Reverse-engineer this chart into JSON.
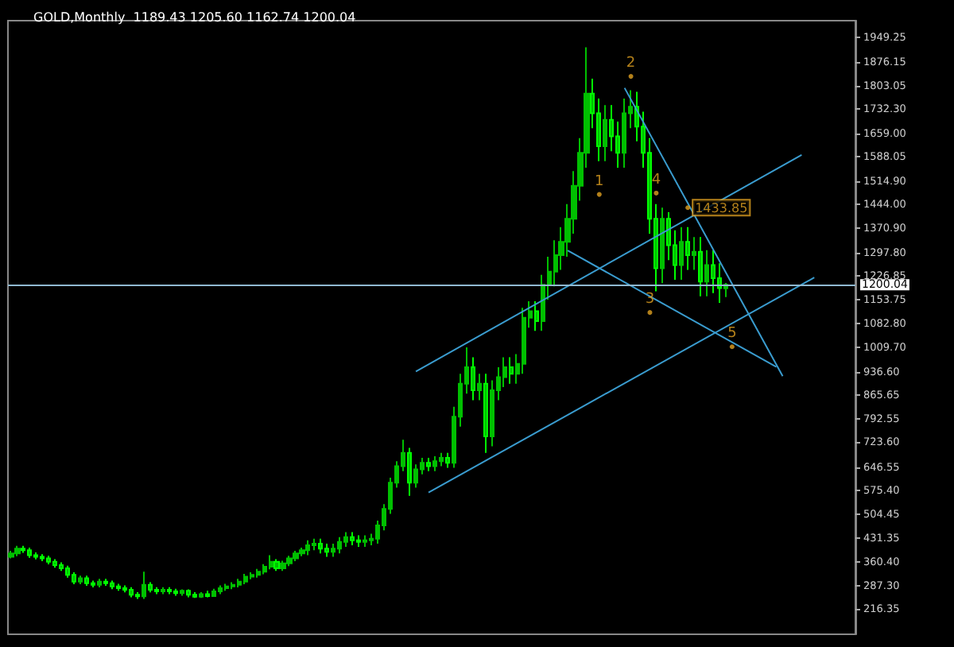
{
  "chart_data": {
    "type": "candlestick",
    "title": "GOLD,Monthly  1189.43 1205.60 1162.74 1200.04",
    "categories": [
      null,
      null,
      null,
      null,
      null,
      null,
      null,
      null,
      null,
      null,
      null,
      null,
      null,
      null,
      null,
      null,
      null,
      null,
      null,
      null,
      null,
      null,
      null,
      null,
      null,
      null,
      null,
      null,
      null,
      null,
      null,
      null,
      null,
      null,
      null,
      null,
      null,
      null,
      null,
      null,
      null,
      null,
      null,
      null,
      null,
      null,
      null,
      null,
      null,
      null,
      null,
      null,
      null,
      null,
      null,
      null,
      null,
      null,
      null,
      null,
      null,
      null,
      null,
      null,
      null,
      null,
      null,
      null,
      null,
      null,
      null,
      null,
      null,
      null,
      null,
      null,
      null,
      null,
      null,
      null,
      null,
      null,
      null,
      null,
      null,
      null,
      null,
      null,
      null,
      null,
      null,
      null,
      null,
      null,
      null,
      null,
      null,
      null,
      null,
      null,
      null,
      null,
      null,
      null,
      null,
      null,
      null,
      null,
      null,
      null,
      null,
      null,
      null,
      null,
      null,
      null,
      null,
      null,
      null,
      null,
      null,
      null,
      null,
      null,
      null,
      null,
      null,
      null,
      null,
      null,
      null,
      null,
      null,
      null
    ],
    "ohlc": [
      [
        375,
        393,
        370,
        385
      ],
      [
        385,
        408,
        377,
        400
      ],
      [
        400,
        408,
        387,
        395
      ],
      [
        395,
        403,
        372,
        380
      ],
      [
        380,
        388,
        367,
        375
      ],
      [
        375,
        383,
        362,
        370
      ],
      [
        370,
        378,
        352,
        360
      ],
      [
        360,
        368,
        342,
        350
      ],
      [
        350,
        358,
        332,
        340
      ],
      [
        340,
        348,
        312,
        320
      ],
      [
        320,
        328,
        292,
        300
      ],
      [
        300,
        318,
        292,
        310
      ],
      [
        310,
        318,
        287,
        295
      ],
      [
        295,
        303,
        282,
        290
      ],
      [
        290,
        308,
        282,
        300
      ],
      [
        300,
        308,
        287,
        295
      ],
      [
        295,
        303,
        277,
        285
      ],
      [
        285,
        293,
        272,
        280
      ],
      [
        280,
        288,
        267,
        275
      ],
      [
        275,
        283,
        252,
        260
      ],
      [
        260,
        268,
        247,
        255
      ],
      [
        255,
        330,
        247,
        290
      ],
      [
        290,
        298,
        267,
        275
      ],
      [
        275,
        283,
        262,
        270
      ],
      [
        270,
        283,
        262,
        275
      ],
      [
        275,
        283,
        262,
        270
      ],
      [
        270,
        278,
        257,
        265
      ],
      [
        265,
        276,
        257,
        272
      ],
      [
        272,
        276,
        252,
        260
      ],
      [
        260,
        268,
        250,
        254
      ],
      [
        254,
        268,
        250,
        262
      ],
      [
        262,
        272,
        252,
        256
      ],
      [
        256,
        278,
        254,
        270
      ],
      [
        270,
        288,
        262,
        280
      ],
      [
        280,
        293,
        272,
        285
      ],
      [
        285,
        298,
        277,
        290
      ],
      [
        290,
        308,
        282,
        300
      ],
      [
        300,
        323,
        292,
        315
      ],
      [
        315,
        328,
        307,
        320
      ],
      [
        320,
        338,
        312,
        330
      ],
      [
        330,
        353,
        322,
        345
      ],
      [
        345,
        380,
        337,
        360
      ],
      [
        360,
        368,
        332,
        340
      ],
      [
        340,
        363,
        332,
        355
      ],
      [
        355,
        378,
        347,
        370
      ],
      [
        370,
        393,
        362,
        385
      ],
      [
        385,
        403,
        377,
        395
      ],
      [
        395,
        425,
        380,
        410
      ],
      [
        410,
        430,
        395,
        415
      ],
      [
        415,
        430,
        385,
        400
      ],
      [
        400,
        415,
        375,
        390
      ],
      [
        390,
        415,
        375,
        400
      ],
      [
        400,
        435,
        385,
        420
      ],
      [
        420,
        450,
        405,
        435
      ],
      [
        435,
        450,
        410,
        425
      ],
      [
        425,
        440,
        405,
        420
      ],
      [
        420,
        440,
        405,
        425
      ],
      [
        425,
        445,
        410,
        430
      ],
      [
        430,
        485,
        415,
        470
      ],
      [
        470,
        535,
        455,
        520
      ],
      [
        520,
        615,
        505,
        600
      ],
      [
        600,
        665,
        585,
        650
      ],
      [
        650,
        730,
        635,
        690
      ],
      [
        690,
        705,
        560,
        600
      ],
      [
        600,
        655,
        585,
        640
      ],
      [
        640,
        675,
        625,
        660
      ],
      [
        660,
        675,
        635,
        650
      ],
      [
        650,
        680,
        635,
        665
      ],
      [
        665,
        690,
        650,
        675
      ],
      [
        675,
        690,
        645,
        660
      ],
      [
        660,
        830,
        645,
        800
      ],
      [
        800,
        930,
        770,
        900
      ],
      [
        900,
        1010,
        870,
        950
      ],
      [
        950,
        980,
        850,
        880
      ],
      [
        880,
        930,
        850,
        900
      ],
      [
        900,
        930,
        690,
        740
      ],
      [
        740,
        910,
        710,
        880
      ],
      [
        880,
        950,
        850,
        920
      ],
      [
        920,
        980,
        890,
        950
      ],
      [
        950,
        980,
        900,
        930
      ],
      [
        930,
        990,
        900,
        960
      ],
      [
        960,
        1130,
        930,
        1100
      ],
      [
        1100,
        1150,
        1070,
        1120
      ],
      [
        1120,
        1150,
        1060,
        1090
      ],
      [
        1090,
        1230,
        1060,
        1200
      ],
      [
        1200,
        1285,
        1155,
        1240
      ],
      [
        1240,
        1335,
        1195,
        1290
      ],
      [
        1290,
        1375,
        1245,
        1330
      ],
      [
        1330,
        1445,
        1285,
        1400
      ],
      [
        1400,
        1545,
        1355,
        1500
      ],
      [
        1500,
        1645,
        1455,
        1600
      ],
      [
        1600,
        1920,
        1555,
        1780
      ],
      [
        1780,
        1825,
        1675,
        1720
      ],
      [
        1720,
        1765,
        1575,
        1620
      ],
      [
        1620,
        1745,
        1575,
        1700
      ],
      [
        1700,
        1745,
        1605,
        1650
      ],
      [
        1650,
        1695,
        1555,
        1600
      ],
      [
        1600,
        1765,
        1555,
        1720
      ],
      [
        1720,
        1790,
        1675,
        1740
      ],
      [
        1740,
        1785,
        1635,
        1680
      ],
      [
        1680,
        1725,
        1555,
        1600
      ],
      [
        1600,
        1645,
        1355,
        1400
      ],
      [
        1400,
        1445,
        1180,
        1250
      ],
      [
        1250,
        1433.85,
        1205,
        1400
      ],
      [
        1400,
        1420,
        1275,
        1320
      ],
      [
        1320,
        1365,
        1215,
        1260
      ],
      [
        1260,
        1375,
        1215,
        1330
      ],
      [
        1330,
        1375,
        1245,
        1290
      ],
      [
        1290,
        1345,
        1245,
        1300
      ],
      [
        1300,
        1345,
        1165,
        1210
      ],
      [
        1210,
        1305,
        1165,
        1260
      ],
      [
        1260,
        1305,
        1175,
        1220
      ],
      [
        1220,
        1265,
        1145,
        1190
      ],
      [
        1189.43,
        1205.6,
        1162.74,
        1200.04
      ],
      null,
      null,
      null,
      null,
      null,
      null,
      null,
      null,
      null,
      null,
      null,
      null,
      null,
      null,
      null,
      null,
      null,
      null,
      null,
      null
    ],
    "color": "#00c000",
    "series": [
      {
        "type": "line",
        "color": "#3a9ccf",
        "values": [
          null,
          null,
          null,
          null,
          null,
          null,
          null,
          null,
          null,
          null,
          null,
          null,
          null,
          null,
          null,
          null,
          null,
          null,
          null,
          null,
          null,
          null,
          null,
          null,
          null,
          null,
          null,
          null,
          null,
          null,
          null,
          null,
          null,
          null,
          null,
          null,
          null,
          null,
          null,
          null,
          null,
          null,
          null,
          null,
          null,
          null,
          null,
          null,
          null,
          null,
          null,
          null,
          null,
          null,
          null,
          null,
          null,
          null,
          null,
          null,
          null,
          null,
          null,
          null,
          937,
          null,
          null,
          null,
          null,
          null,
          null,
          null,
          null,
          null,
          null,
          null,
          null,
          null,
          null,
          null,
          null,
          null,
          null,
          null,
          null,
          null,
          null,
          null,
          null,
          null,
          null,
          null,
          null,
          null,
          null,
          null,
          null,
          null,
          null,
          null,
          null,
          null,
          null,
          null,
          null,
          null,
          null,
          null,
          null,
          null,
          null,
          null,
          null,
          null,
          null,
          null,
          null,
          null,
          null,
          null,
          null,
          null,
          null,
          null,
          null,
          1594,
          null,
          null,
          null,
          null,
          null,
          null,
          null,
          null
        ]
      },
      {
        "type": "line",
        "color": "#3a9ccf",
        "values": [
          null,
          null,
          null,
          null,
          null,
          null,
          null,
          null,
          null,
          null,
          null,
          null,
          null,
          null,
          null,
          null,
          null,
          null,
          null,
          null,
          null,
          null,
          null,
          null,
          null,
          null,
          null,
          null,
          null,
          null,
          null,
          null,
          null,
          null,
          null,
          null,
          null,
          null,
          null,
          null,
          null,
          null,
          null,
          null,
          null,
          null,
          null,
          null,
          null,
          null,
          null,
          null,
          null,
          null,
          null,
          null,
          null,
          null,
          null,
          null,
          null,
          null,
          null,
          null,
          null,
          null,
          570,
          null,
          null,
          null,
          null,
          null,
          null,
          null,
          null,
          null,
          null,
          null,
          null,
          null,
          null,
          null,
          null,
          null,
          null,
          null,
          null,
          null,
          null,
          null,
          null,
          null,
          null,
          null,
          null,
          null,
          null,
          null,
          null,
          null,
          null,
          null,
          null,
          null,
          null,
          null,
          null,
          null,
          null,
          null,
          null,
          null,
          null,
          null,
          null,
          null,
          null,
          null,
          null,
          null,
          null,
          null,
          null,
          null,
          null,
          null,
          null,
          1222,
          null,
          null,
          null,
          null,
          null,
          null
        ]
      },
      {
        "type": "line",
        "color": "#3a9ccf",
        "values": [
          null,
          null,
          null,
          null,
          null,
          null,
          null,
          null,
          null,
          null,
          null,
          null,
          null,
          null,
          null,
          null,
          null,
          null,
          null,
          null,
          null,
          null,
          null,
          null,
          null,
          null,
          null,
          null,
          null,
          null,
          null,
          null,
          null,
          null,
          null,
          null,
          null,
          null,
          null,
          null,
          null,
          null,
          null,
          null,
          null,
          null,
          null,
          null,
          null,
          null,
          null,
          null,
          null,
          null,
          null,
          null,
          null,
          null,
          null,
          null,
          null,
          null,
          null,
          null,
          null,
          null,
          null,
          null,
          null,
          null,
          null,
          null,
          null,
          null,
          null,
          null,
          null,
          null,
          null,
          null,
          null,
          null,
          null,
          null,
          null,
          null,
          null,
          null,
          1304,
          null,
          null,
          null,
          null,
          null,
          null,
          null,
          null,
          null,
          null,
          null,
          null,
          null,
          null,
          null,
          null,
          null,
          null,
          null,
          null,
          null,
          null,
          null,
          null,
          null,
          null,
          null,
          null,
          null,
          null,
          null,
          null,
          951,
          null,
          null,
          null,
          null,
          null,
          null,
          null,
          null,
          null,
          null,
          null,
          null
        ]
      },
      {
        "type": "line",
        "color": "#3a9ccf",
        "values": [
          null,
          null,
          null,
          null,
          null,
          null,
          null,
          null,
          null,
          null,
          null,
          null,
          null,
          null,
          null,
          null,
          null,
          null,
          null,
          null,
          null,
          null,
          null,
          null,
          null,
          null,
          null,
          null,
          null,
          null,
          null,
          null,
          null,
          null,
          null,
          null,
          null,
          null,
          null,
          null,
          null,
          null,
          null,
          null,
          null,
          null,
          null,
          null,
          null,
          null,
          null,
          null,
          null,
          null,
          null,
          null,
          null,
          null,
          null,
          null,
          null,
          null,
          null,
          null,
          null,
          null,
          null,
          null,
          null,
          null,
          null,
          null,
          null,
          null,
          null,
          null,
          null,
          null,
          null,
          null,
          null,
          null,
          null,
          null,
          null,
          null,
          null,
          null,
          null,
          null,
          null,
          null,
          null,
          null,
          null,
          null,
          null,
          1797,
          null,
          null,
          null,
          null,
          null,
          null,
          null,
          null,
          null,
          null,
          null,
          null,
          null,
          null,
          null,
          null,
          null,
          null,
          null,
          null,
          null,
          null,
          null,
          null,
          923,
          null,
          null,
          null,
          null,
          null,
          null,
          null,
          null,
          null,
          null,
          null
        ]
      },
      {
        "type": "scatter",
        "name": "1",
        "color": "#e0a020",
        "marker": "circle",
        "values": [
          null,
          null,
          null,
          null,
          null,
          null,
          null,
          null,
          null,
          null,
          null,
          null,
          null,
          null,
          null,
          null,
          null,
          null,
          null,
          null,
          null,
          null,
          null,
          null,
          null,
          null,
          null,
          null,
          null,
          null,
          null,
          null,
          null,
          null,
          null,
          null,
          null,
          null,
          null,
          null,
          null,
          null,
          null,
          null,
          null,
          null,
          null,
          null,
          null,
          null,
          null,
          null,
          null,
          null,
          null,
          null,
          null,
          null,
          null,
          null,
          null,
          null,
          null,
          null,
          null,
          null,
          null,
          null,
          null,
          null,
          null,
          null,
          null,
          null,
          null,
          null,
          null,
          null,
          null,
          null,
          null,
          null,
          null,
          null,
          null,
          null,
          null,
          null,
          null,
          null,
          null,
          null,
          null,
          1474,
          null,
          null,
          null,
          null,
          null,
          null,
          null,
          null,
          null,
          null,
          null,
          null,
          null,
          null,
          null,
          null,
          null,
          null,
          null,
          null,
          null,
          null,
          null,
          null,
          null,
          null,
          null,
          null,
          null,
          null,
          null,
          null,
          null,
          null,
          null,
          null,
          null,
          null,
          null,
          null
        ]
      },
      {
        "type": "scatter",
        "name": "2",
        "color": "#e0a020",
        "marker": "circle",
        "values": [
          null,
          null,
          null,
          null,
          null,
          null,
          null,
          null,
          null,
          null,
          null,
          null,
          null,
          null,
          null,
          null,
          null,
          null,
          null,
          null,
          null,
          null,
          null,
          null,
          null,
          null,
          null,
          null,
          null,
          null,
          null,
          null,
          null,
          null,
          null,
          null,
          null,
          null,
          null,
          null,
          null,
          null,
          null,
          null,
          null,
          null,
          null,
          null,
          null,
          null,
          null,
          null,
          null,
          null,
          null,
          null,
          null,
          null,
          null,
          null,
          null,
          null,
          null,
          null,
          null,
          null,
          null,
          null,
          null,
          null,
          null,
          null,
          null,
          null,
          null,
          null,
          null,
          null,
          null,
          null,
          null,
          null,
          null,
          null,
          null,
          null,
          null,
          null,
          null,
          null,
          null,
          null,
          null,
          null,
          null,
          null,
          null,
          null,
          1832,
          null,
          null,
          null,
          null,
          null,
          null,
          null,
          null,
          null,
          null,
          null,
          null,
          null,
          null,
          null,
          null,
          null,
          null,
          null,
          null,
          null,
          null,
          null,
          null,
          null,
          null,
          null,
          null,
          null,
          null,
          null,
          null,
          null,
          null,
          null
        ]
      },
      {
        "type": "scatter",
        "name": "3",
        "color": "#e0a020",
        "marker": "circle",
        "values": [
          null,
          null,
          null,
          null,
          null,
          null,
          null,
          null,
          null,
          null,
          null,
          null,
          null,
          null,
          null,
          null,
          null,
          null,
          null,
          null,
          null,
          null,
          null,
          null,
          null,
          null,
          null,
          null,
          null,
          null,
          null,
          null,
          null,
          null,
          null,
          null,
          null,
          null,
          null,
          null,
          null,
          null,
          null,
          null,
          null,
          null,
          null,
          null,
          null,
          null,
          null,
          null,
          null,
          null,
          null,
          null,
          null,
          null,
          null,
          null,
          null,
          null,
          null,
          null,
          null,
          null,
          null,
          null,
          null,
          null,
          null,
          null,
          null,
          null,
          null,
          null,
          null,
          null,
          null,
          null,
          null,
          null,
          null,
          null,
          null,
          null,
          null,
          null,
          null,
          null,
          null,
          null,
          null,
          null,
          null,
          null,
          null,
          null,
          null,
          null,
          null,
          1116,
          null,
          null,
          null,
          null,
          null,
          null,
          null,
          null,
          null,
          null,
          null,
          null,
          null,
          null,
          null,
          null,
          null,
          null,
          null,
          null,
          null,
          null,
          null,
          null,
          null,
          null,
          null,
          null,
          null,
          null,
          null,
          null
        ]
      },
      {
        "type": "scatter",
        "name": "4",
        "color": "#e0a020",
        "marker": "circle",
        "values": [
          null,
          null,
          null,
          null,
          null,
          null,
          null,
          null,
          null,
          null,
          null,
          null,
          null,
          null,
          null,
          null,
          null,
          null,
          null,
          null,
          null,
          null,
          null,
          null,
          null,
          null,
          null,
          null,
          null,
          null,
          null,
          null,
          null,
          null,
          null,
          null,
          null,
          null,
          null,
          null,
          null,
          null,
          null,
          null,
          null,
          null,
          null,
          null,
          null,
          null,
          null,
          null,
          null,
          null,
          null,
          null,
          null,
          null,
          null,
          null,
          null,
          null,
          null,
          null,
          null,
          null,
          null,
          null,
          null,
          null,
          null,
          null,
          null,
          null,
          null,
          null,
          null,
          null,
          null,
          null,
          null,
          null,
          null,
          null,
          null,
          null,
          null,
          null,
          null,
          null,
          null,
          null,
          null,
          null,
          null,
          null,
          null,
          null,
          null,
          null,
          null,
          null,
          1478,
          null,
          null,
          null,
          null,
          null,
          null,
          null,
          null,
          null,
          null,
          null,
          null,
          null,
          null,
          null,
          null,
          null,
          null,
          null,
          null,
          null,
          null,
          null,
          null,
          null,
          null,
          null,
          null,
          null,
          null,
          null
        ]
      },
      {
        "type": "scatter",
        "name": "5",
        "color": "#e0a020",
        "marker": "circle",
        "values": [
          null,
          null,
          null,
          null,
          null,
          null,
          null,
          null,
          null,
          null,
          null,
          null,
          null,
          null,
          null,
          null,
          null,
          null,
          null,
          null,
          null,
          null,
          null,
          null,
          null,
          null,
          null,
          null,
          null,
          null,
          null,
          null,
          null,
          null,
          null,
          null,
          null,
          null,
          null,
          null,
          null,
          null,
          null,
          null,
          null,
          null,
          null,
          null,
          null,
          null,
          null,
          null,
          null,
          null,
          null,
          null,
          null,
          null,
          null,
          null,
          null,
          null,
          null,
          null,
          null,
          null,
          null,
          null,
          null,
          null,
          null,
          null,
          null,
          null,
          null,
          null,
          null,
          null,
          null,
          null,
          null,
          null,
          null,
          null,
          null,
          null,
          null,
          null,
          null,
          null,
          null,
          null,
          null,
          null,
          null,
          null,
          null,
          null,
          null,
          null,
          null,
          null,
          null,
          null,
          null,
          null,
          null,
          null,
          null,
          null,
          null,
          null,
          null,
          null,
          1012,
          null,
          null,
          null,
          null,
          null,
          null,
          null,
          null,
          null,
          null,
          null,
          null,
          null,
          null,
          null,
          null,
          null,
          null,
          null
        ]
      },
      {
        "type": "scatter",
        "color": "#e0a020",
        "marker": "circle",
        "values": [
          null,
          null,
          null,
          null,
          null,
          null,
          null,
          null,
          null,
          null,
          null,
          null,
          null,
          null,
          null,
          null,
          null,
          null,
          null,
          null,
          null,
          null,
          null,
          null,
          null,
          null,
          null,
          null,
          null,
          null,
          null,
          null,
          null,
          null,
          null,
          null,
          null,
          null,
          null,
          null,
          null,
          null,
          null,
          null,
          null,
          null,
          null,
          null,
          null,
          null,
          null,
          null,
          null,
          null,
          null,
          null,
          null,
          null,
          null,
          null,
          null,
          null,
          null,
          null,
          null,
          null,
          null,
          null,
          null,
          null,
          null,
          null,
          null,
          null,
          null,
          null,
          null,
          null,
          null,
          null,
          null,
          null,
          null,
          null,
          null,
          null,
          null,
          null,
          null,
          null,
          null,
          null,
          null,
          null,
          null,
          null,
          null,
          null,
          null,
          null,
          null,
          null,
          null,
          null,
          null,
          null,
          null,
          1433.85,
          null,
          null,
          null,
          null,
          null,
          null,
          null,
          null,
          null,
          null,
          null,
          null,
          null,
          null,
          null,
          null,
          null,
          null,
          null,
          null,
          null,
          null,
          null,
          null,
          null,
          null
        ],
        "value_labels": [
          null,
          null,
          null,
          null,
          null,
          null,
          null,
          null,
          null,
          null,
          null,
          null,
          null,
          null,
          null,
          null,
          null,
          null,
          null,
          null,
          null,
          null,
          null,
          null,
          null,
          null,
          null,
          null,
          null,
          null,
          null,
          null,
          null,
          null,
          null,
          null,
          null,
          null,
          null,
          null,
          null,
          null,
          null,
          null,
          null,
          null,
          null,
          null,
          null,
          null,
          null,
          null,
          null,
          null,
          null,
          null,
          null,
          null,
          null,
          null,
          null,
          null,
          null,
          null,
          null,
          null,
          null,
          null,
          null,
          null,
          null,
          null,
          null,
          null,
          null,
          null,
          null,
          null,
          null,
          null,
          null,
          null,
          null,
          null,
          null,
          null,
          null,
          null,
          null,
          null,
          null,
          null,
          null,
          null,
          null,
          null,
          null,
          null,
          null,
          null,
          null,
          null,
          null,
          null,
          null,
          null,
          null,
          "1433.85",
          null,
          null,
          null,
          null,
          null,
          null,
          null,
          null,
          null,
          null,
          null,
          null,
          null,
          null,
          null,
          null,
          null,
          null,
          null,
          null,
          null,
          null,
          null,
          null,
          null,
          null
        ]
      }
    ],
    "marker": "none",
    "ylim": [
      140,
      2001
    ],
    "yticks": [
      {
        "value": 1949.25,
        "label": "1949.25"
      },
      {
        "value": 1876.15,
        "label": "1876.15"
      },
      {
        "value": 1803.05,
        "label": "1803.05"
      },
      {
        "value": 1732.3,
        "label": "1732.30"
      },
      {
        "value": 1659,
        "label": "1659.00"
      },
      {
        "value": 1588.05,
        "label": "1588.05"
      },
      {
        "value": 1514.9,
        "label": "1514.90"
      },
      {
        "value": 1444,
        "label": "1444.00"
      },
      {
        "value": 1370.9,
        "label": "1370.90"
      },
      {
        "value": 1297.8,
        "label": "1297.80"
      },
      {
        "value": 1226.85,
        "label": "1226.85"
      },
      {
        "value": 1153.75,
        "label": "1153.75"
      },
      {
        "value": 1082.8,
        "label": "1082.80"
      },
      {
        "value": 1009.7,
        "label": "1009.70"
      },
      {
        "value": 936.6,
        "label": "936.60"
      },
      {
        "value": 865.65,
        "label": "865.65"
      },
      {
        "value": 792.55,
        "label": "792.55"
      },
      {
        "value": 723.6,
        "label": "723.60"
      },
      {
        "value": 646.55,
        "label": "646.55"
      },
      {
        "value": 575.4,
        "label": "575.40"
      },
      {
        "value": 504.45,
        "label": "504.45"
      },
      {
        "value": 431.35,
        "label": "431.35"
      },
      {
        "value": 360.4,
        "label": "360.40"
      },
      {
        "value": 287.3,
        "label": "287.30"
      },
      {
        "value": 216.35,
        "label": "216.35"
      }
    ],
    "tick_labels": "y",
    "grid": false,
    "ref_lines": [
      {
        "axis": "y",
        "value": 1200.04,
        "label": "1200.04",
        "color": "#8fb8d0"
      }
    ]
  }
}
